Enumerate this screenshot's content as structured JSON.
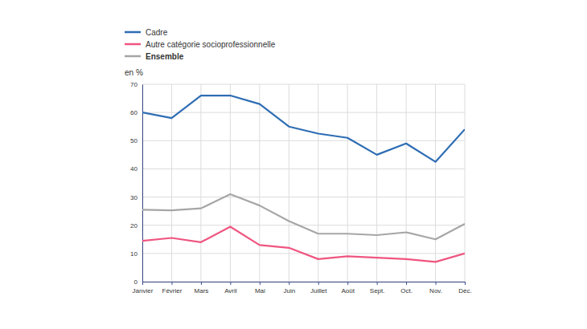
{
  "chart_data": {
    "type": "line",
    "y_label": "en %",
    "categories": [
      "Janvier",
      "Février",
      "Mars",
      "Avril",
      "Mai",
      "Juin",
      "Juillet",
      "Août",
      "Sept.",
      "Oct.",
      "Nov.",
      "Déc."
    ],
    "series": [
      {
        "name": "Cadre",
        "color": "#2e6db4",
        "values": [
          60,
          58,
          66,
          66,
          63,
          55,
          52.5,
          51,
          45,
          49,
          42.5,
          54
        ]
      },
      {
        "name": "Autre catégorie socioprofessionnelle",
        "color": "#ef5580",
        "values": [
          14.5,
          15.5,
          14,
          19.5,
          13,
          12,
          8,
          9,
          8.5,
          8,
          7,
          10
        ]
      },
      {
        "name": "Ensemble",
        "color": "#a6a6a6",
        "values": [
          25.5,
          25.3,
          26,
          31,
          27,
          21.5,
          17,
          17,
          16.5,
          17.5,
          15,
          20.5
        ]
      }
    ],
    "ylim": [
      0,
      70
    ],
    "yticks": [
      0,
      10,
      20,
      30,
      40,
      50,
      60,
      70
    ],
    "grid": true,
    "legend": "top-left"
  }
}
